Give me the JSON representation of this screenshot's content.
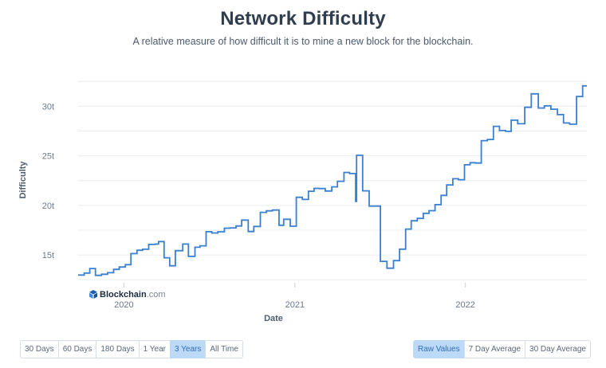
{
  "header": {
    "title": "Network Difficulty",
    "subtitle": "A relative measure of how difficult it is to mine a new block for the blockchain."
  },
  "brand": {
    "name": "Blockchain",
    "suffix": ".com"
  },
  "time_range": {
    "options": [
      "30 Days",
      "60 Days",
      "180 Days",
      "1 Year",
      "3 Years",
      "All Time"
    ],
    "selected": "3 Years"
  },
  "value_mode": {
    "options": [
      "Raw Values",
      "7 Day Average",
      "30 Day Average"
    ],
    "selected": "Raw Values"
  },
  "colors": {
    "line": "#3a7fd0",
    "grid": "#e9edf1",
    "active_button": "#bcd9f7"
  },
  "chart_data": {
    "type": "line",
    "title": "",
    "xlabel": "Date",
    "ylabel": "Difficulty",
    "xlim": [
      "2019-09-25",
      "2022-09-18"
    ],
    "ylim": [
      12.2,
      33
    ],
    "x_ticks": [
      {
        "value": "2020-01-01",
        "label": "2020"
      },
      {
        "value": "2021-01-01",
        "label": "2021"
      },
      {
        "value": "2022-01-01",
        "label": "2022"
      }
    ],
    "y_ticks": [
      {
        "value": 15,
        "label": "15t"
      },
      {
        "value": 20,
        "label": "20t"
      },
      {
        "value": 25,
        "label": "25t"
      },
      {
        "value": 30,
        "label": "30t"
      }
    ],
    "grid": "horizontal",
    "step": true,
    "series": [
      {
        "x": [
          "2019-09-25",
          "2019-10-08",
          "2019-10-20",
          "2019-11-01",
          "2019-11-14",
          "2019-11-27",
          "2019-12-10",
          "2019-12-22",
          "2020-01-04",
          "2020-01-16",
          "2020-01-29",
          "2020-02-10",
          "2020-02-23",
          "2020-03-08",
          "2020-03-15",
          "2020-03-27",
          "2020-04-08",
          "2020-04-20",
          "2020-05-06",
          "2020-05-18",
          "2020-06-01",
          "2020-06-12",
          "2020-06-25",
          "2020-07-07",
          "2020-07-20",
          "2020-08-03",
          "2020-08-15",
          "2020-08-28",
          "2020-09-09",
          "2020-09-23",
          "2020-10-05",
          "2020-10-19",
          "2020-11-01",
          "2020-11-14",
          "2020-11-28",
          "2020-12-08",
          "2020-12-22",
          "2021-01-04",
          "2021-01-17",
          "2021-01-30",
          "2021-02-11",
          "2021-02-23",
          "2021-03-07",
          "2021-03-21",
          "2021-04-02",
          "2021-04-16",
          "2021-04-28",
          "2021-05-11",
          "2021-05-13",
          "2021-05-26",
          "2021-06-09",
          "2021-07-03",
          "2021-07-17",
          "2021-07-31",
          "2021-08-13",
          "2021-08-26",
          "2021-09-07",
          "2021-09-20",
          "2021-10-03",
          "2021-10-15",
          "2021-10-28",
          "2021-11-10",
          "2021-11-22",
          "2021-12-05",
          "2021-12-17",
          "2021-12-30",
          "2022-01-11",
          "2022-01-23",
          "2022-02-04",
          "2022-02-17",
          "2022-03-02",
          "2022-03-15",
          "2022-03-28",
          "2022-04-09",
          "2022-04-23",
          "2022-05-08",
          "2022-05-22",
          "2022-06-06",
          "2022-06-19",
          "2022-07-03",
          "2022-07-17",
          "2022-07-30",
          "2022-08-12",
          "2022-08-27",
          "2022-09-09"
        ],
        "y": [
          12.98,
          13.18,
          13.64,
          12.95,
          13.06,
          13.21,
          13.55,
          13.79,
          14.02,
          15.14,
          15.48,
          15.58,
          16.06,
          16.1,
          16.35,
          14.72,
          13.91,
          15.44,
          16.1,
          14.86,
          15.78,
          15.93,
          17.35,
          17.22,
          17.34,
          17.7,
          17.73,
          17.93,
          18.52,
          17.36,
          17.88,
          19.3,
          19.45,
          19.53,
          18.0,
          18.6,
          17.9,
          20.82,
          20.6,
          21.43,
          21.72,
          21.7,
          21.45,
          21.87,
          22.43,
          23.32,
          23.21,
          20.41,
          25.05,
          21.47,
          19.93,
          14.36,
          13.67,
          14.43,
          15.59,
          17.61,
          18.45,
          18.69,
          19.2,
          19.47,
          20.08,
          21.01,
          22.06,
          22.69,
          22.59,
          24.09,
          24.3,
          24.27,
          26.53,
          26.65,
          27.97,
          27.55,
          27.47,
          28.59,
          28.23,
          29.89,
          31.25,
          29.82,
          30.04,
          29.7,
          29.15,
          28.31,
          28.19,
          30.98,
          32.05
        ]
      }
    ]
  }
}
